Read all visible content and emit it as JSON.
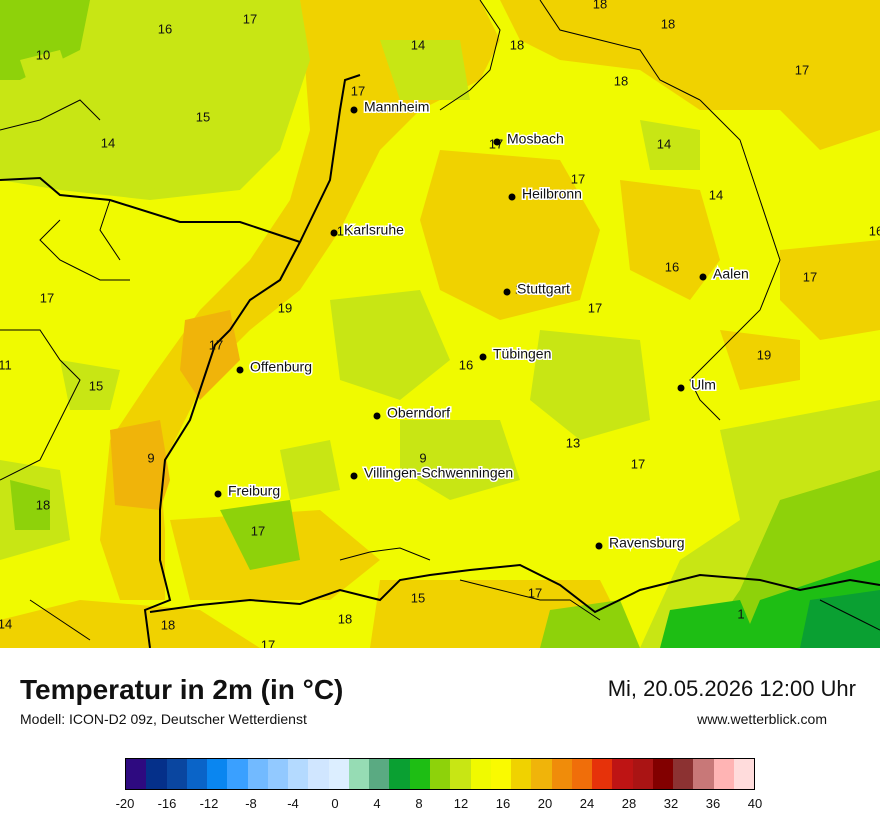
{
  "map": {
    "cities": [
      {
        "name": "Mannheim"
      },
      {
        "name": "Mosbach"
      },
      {
        "name": "Heilbronn"
      },
      {
        "name": "Karlsruhe"
      },
      {
        "name": "Stuttgart"
      },
      {
        "name": "Aalen"
      },
      {
        "name": "Tübingen"
      },
      {
        "name": "Offenburg"
      },
      {
        "name": "Ulm"
      },
      {
        "name": "Oberndorf"
      },
      {
        "name": "Villingen-Schwenningen"
      },
      {
        "name": "Freiburg"
      },
      {
        "name": "Ravensburg"
      }
    ],
    "values": [
      "18",
      "17",
      "16",
      "18",
      "14",
      "18",
      "10",
      "17",
      "18",
      "17",
      "15",
      "14",
      "17",
      "14",
      "17",
      "14",
      "18",
      "16",
      "17",
      "16",
      "18",
      "17",
      "19",
      "17",
      "17",
      "11",
      "15",
      "16",
      "19",
      "13",
      "9",
      "9",
      "17",
      "18",
      "17",
      "15",
      "17",
      "14",
      "18",
      "18",
      "1",
      "17"
    ]
  },
  "footer": {
    "title": "Temperatur in 2m (in °C)",
    "model": "Modell: ICON-D2 09z, Deutscher Wetterdienst",
    "datetime": "Mi, 20.05.2026 12:00 Uhr",
    "site": "www.wetterblick.com"
  },
  "legend": {
    "colors": [
      "#2e0a80",
      "#05308a",
      "#0a46a0",
      "#0a64c8",
      "#0a86f0",
      "#3aa0ff",
      "#72baff",
      "#92c9ff",
      "#b4daff",
      "#d0e6ff",
      "#dceeff",
      "#96dcb4",
      "#5aaa82",
      "#0aa032",
      "#1ebe14",
      "#8ed20a",
      "#c8e614",
      "#f0fa00",
      "#fafa00",
      "#f0d200",
      "#f0b40a",
      "#f08c0a",
      "#f06e0a",
      "#e6320a",
      "#be1414",
      "#aa1414",
      "#820000",
      "#8c3232",
      "#c87878",
      "#ffb4b4",
      "#ffdcdc"
    ],
    "ticks": [
      "-20",
      "-16",
      "-12",
      "-8",
      "-4",
      "0",
      "4",
      "8",
      "12",
      "16",
      "20",
      "24",
      "28",
      "32",
      "36",
      "40"
    ]
  }
}
